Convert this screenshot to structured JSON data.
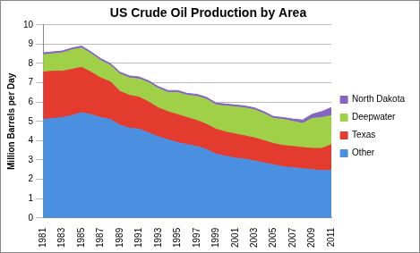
{
  "chart_data": {
    "type": "area",
    "title": "US Crude Oil Production by Area",
    "y_label": "Million Barrels per Day",
    "categories": [
      "1981",
      null,
      "1983",
      null,
      "1985",
      null,
      "1987",
      null,
      "1989",
      null,
      "1991",
      null,
      "1993",
      null,
      "1995",
      null,
      "1997",
      null,
      "1999",
      null,
      "2001",
      null,
      "2003",
      null,
      "2005",
      null,
      "2007",
      null,
      "2009",
      null,
      "2011"
    ],
    "series": [
      {
        "name": "Other",
        "color": "#4a8fe0",
        "values": [
          5.1,
          5.15,
          5.2,
          5.3,
          5.45,
          5.35,
          5.2,
          5.1,
          4.8,
          4.65,
          4.6,
          4.4,
          4.2,
          4.05,
          3.9,
          3.8,
          3.7,
          3.55,
          3.3,
          3.2,
          3.1,
          3.05,
          2.95,
          2.85,
          2.75,
          2.65,
          2.6,
          2.55,
          2.5,
          2.45,
          2.45
        ]
      },
      {
        "name": "Texas",
        "color": "#e33b2e",
        "values": [
          2.45,
          2.45,
          2.4,
          2.4,
          2.35,
          2.2,
          2.05,
          1.95,
          1.75,
          1.7,
          1.65,
          1.6,
          1.5,
          1.45,
          1.45,
          1.4,
          1.35,
          1.3,
          1.3,
          1.25,
          1.25,
          1.2,
          1.2,
          1.15,
          1.1,
          1.1,
          1.1,
          1.1,
          1.1,
          1.15,
          1.35
        ]
      },
      {
        "name": "Deepwater",
        "color": "#9fd048",
        "values": [
          0.9,
          0.9,
          0.95,
          1.0,
          1.0,
          0.95,
          0.9,
          0.85,
          0.9,
          0.9,
          0.95,
          1.0,
          1.0,
          1.0,
          1.15,
          1.15,
          1.25,
          1.3,
          1.25,
          1.35,
          1.4,
          1.45,
          1.45,
          1.4,
          1.3,
          1.35,
          1.3,
          1.25,
          1.55,
          1.6,
          1.5
        ]
      },
      {
        "name": "North Dakota",
        "color": "#8764c4",
        "values": [
          0.1,
          0.1,
          0.1,
          0.1,
          0.1,
          0.1,
          0.1,
          0.1,
          0.1,
          0.1,
          0.1,
          0.1,
          0.1,
          0.1,
          0.1,
          0.1,
          0.1,
          0.1,
          0.1,
          0.1,
          0.1,
          0.1,
          0.1,
          0.1,
          0.1,
          0.1,
          0.12,
          0.17,
          0.22,
          0.31,
          0.42
        ]
      }
    ],
    "stacked": true,
    "ylim": [
      0,
      10
    ],
    "yticks": [
      0,
      1,
      2,
      3,
      4,
      5,
      6,
      7,
      8,
      9,
      10
    ],
    "grid": true,
    "legend": "right"
  }
}
